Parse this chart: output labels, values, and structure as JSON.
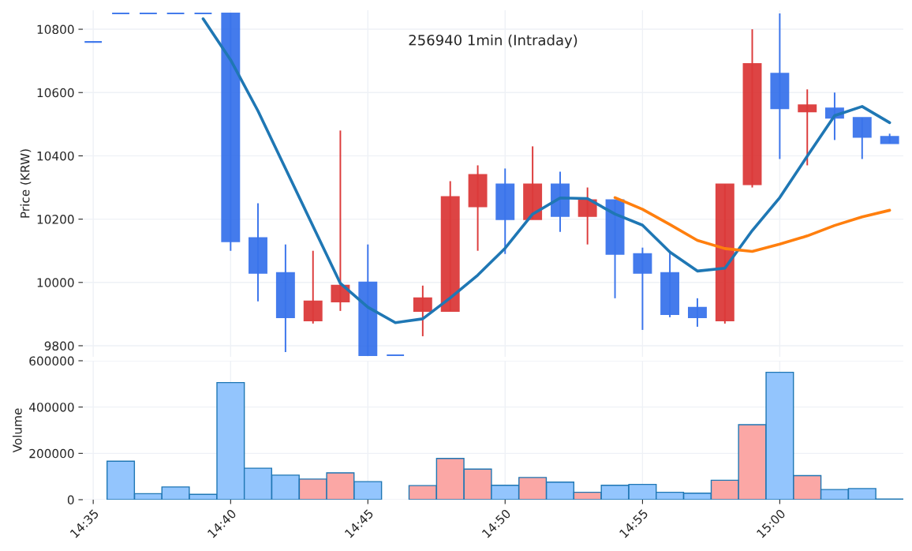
{
  "chart_data": [
    {
      "type": "candlestick",
      "title": "256940 1min (Intraday)",
      "ylabel": "Price (KRW)",
      "x": [
        14.5833,
        14.6,
        14.6167,
        14.6333,
        14.65,
        14.6667,
        14.6833,
        14.7,
        14.7167,
        14.7333,
        14.75,
        14.7667,
        14.7833,
        14.8,
        14.8167,
        14.8333,
        14.85,
        14.8667,
        14.8833,
        14.9,
        14.9167,
        14.9333,
        14.95,
        14.9667,
        14.9833,
        15,
        15.0167,
        15.0333,
        15.05,
        15.0667
      ],
      "ohlc": [
        [
          10760,
          10760,
          10760,
          10760
        ],
        [
          10850,
          10850,
          10850,
          10850
        ],
        [
          10850,
          10850,
          10850,
          10850
        ],
        [
          10850,
          10850,
          10850,
          10850
        ],
        [
          10850,
          10850,
          10850,
          10850
        ],
        [
          10850,
          10850,
          10100,
          10130
        ],
        [
          10140,
          10250,
          9940,
          10030
        ],
        [
          10030,
          10120,
          9780,
          9890
        ],
        [
          9880,
          10100,
          9870,
          9940
        ],
        [
          9940,
          10480,
          9910,
          9990
        ],
        [
          10000,
          10120,
          9770,
          9770
        ],
        [
          9770,
          9770,
          9770,
          9770
        ],
        [
          9910,
          9990,
          9830,
          9950
        ],
        [
          9910,
          10320,
          9910,
          10270
        ],
        [
          10240,
          10370,
          10100,
          10340
        ],
        [
          10310,
          10360,
          10090,
          10200
        ],
        [
          10200,
          10430,
          10200,
          10310
        ],
        [
          10310,
          10350,
          10160,
          10210
        ],
        [
          10210,
          10300,
          10120,
          10260
        ],
        [
          10260,
          10260,
          9950,
          10090
        ],
        [
          10090,
          10110,
          9850,
          10030
        ],
        [
          10030,
          10100,
          9890,
          9900
        ],
        [
          9920,
          9950,
          9860,
          9890
        ],
        [
          9880,
          10310,
          9870,
          10310
        ],
        [
          10310,
          10800,
          10300,
          10690
        ],
        [
          10660,
          10850,
          10390,
          10550
        ],
        [
          10540,
          10610,
          10370,
          10560
        ],
        [
          10550,
          10600,
          10450,
          10520
        ],
        [
          10520,
          10520,
          10390,
          10460
        ],
        [
          10460,
          10470,
          10440,
          10440
        ]
      ],
      "colors": [
        "#3a74eb",
        "#3a74eb",
        "#3a74eb",
        "#3a74eb",
        "#3a74eb",
        "#3a74eb",
        "#3a74eb",
        "#3a74eb",
        "#dc3a3a",
        "#dc3a3a",
        "#3a74eb",
        "#3a74eb",
        "#dc3a3a",
        "#dc3a3a",
        "#dc3a3a",
        "#3a74eb",
        "#dc3a3a",
        "#3a74eb",
        "#dc3a3a",
        "#3a74eb",
        "#3a74eb",
        "#3a74eb",
        "#3a74eb",
        "#dc3a3a",
        "#dc3a3a",
        "#3a74eb",
        "#dc3a3a",
        "#3a74eb",
        "#3a74eb",
        "#3a74eb"
      ],
      "series": [
        {
          "type": "line",
          "color": "#1f77b4",
          "x": [
            14.65,
            14.6667,
            14.6833,
            14.7,
            14.7167,
            14.7333,
            14.75,
            14.7667,
            14.7833,
            14.8,
            14.8167,
            14.8333,
            14.85,
            14.8667,
            14.8833,
            14.9,
            14.9167,
            14.9333,
            14.95,
            14.9667,
            14.9833,
            15,
            15.0167,
            15.0333,
            15.05,
            15.0667
          ],
          "values": [
            10833,
            10703,
            10542,
            10360,
            10178,
            9997,
            9922,
            9873,
            9885,
            9951,
            10023,
            10108,
            10216,
            10267,
            10265,
            10216,
            10181,
            10096,
            10036,
            10045,
            10164,
            10268,
            10399,
            10527,
            10556,
            10505
          ]
        },
        {
          "type": "line",
          "color": "#ff7f0e",
          "x": [
            14.9,
            14.9167,
            14.9333,
            14.95,
            14.9667,
            14.9833,
            15,
            15.0167,
            15.0333,
            15.05,
            15.0667
          ],
          "values": [
            10268,
            10231,
            10183,
            10133,
            10107,
            10098,
            10121,
            10147,
            10180,
            10207,
            10228
          ]
        }
      ],
      "xlim": [
        14.577,
        15.075
      ],
      "ylim": [
        9765,
        10860
      ],
      "xticks": [
        {
          "value": 14.5833,
          "label": null
        },
        {
          "value": 14.6667,
          "label": null
        },
        {
          "value": 14.75,
          "label": null
        },
        {
          "value": 14.8333,
          "label": null
        },
        {
          "value": 14.9167,
          "label": null
        },
        {
          "value": 15,
          "label": null
        }
      ],
      "yticks": [
        9800,
        10000,
        10200,
        10400,
        10600,
        10800
      ],
      "grid": true,
      "tick_labels": "y"
    },
    {
      "type": "bar",
      "ylabel": "Volume",
      "x": [
        14.6,
        14.6167,
        14.6333,
        14.65,
        14.6667,
        14.6833,
        14.7,
        14.7167,
        14.7333,
        14.75,
        14.7667,
        14.7833,
        14.8,
        14.8167,
        14.8333,
        14.85,
        14.8667,
        14.8833,
        14.9,
        14.9167,
        14.9333,
        14.95,
        14.9667,
        14.9833,
        15,
        15.0167,
        15.0333,
        15.05,
        15.0667
      ],
      "values": [
        166000,
        26000,
        55000,
        23000,
        506000,
        136000,
        106000,
        89000,
        116000,
        78000,
        null,
        61000,
        178000,
        132000,
        62000,
        96000,
        76000,
        32000,
        62000,
        66000,
        32000,
        28000,
        84000,
        324000,
        550000,
        104000,
        44000,
        48000,
        3000
      ],
      "colors": [
        "#93c5fd",
        "#93c5fd",
        "#93c5fd",
        "#93c5fd",
        "#93c5fd",
        "#93c5fd",
        "#93c5fd",
        "#fba7a5",
        "#fba7a5",
        "#93c5fd",
        "#93c5fd",
        "#fba7a5",
        "#fba7a5",
        "#fba7a5",
        "#93c5fd",
        "#fba7a5",
        "#93c5fd",
        "#fba7a5",
        "#93c5fd",
        "#93c5fd",
        "#93c5fd",
        "#93c5fd",
        "#fba7a5",
        "#fba7a5",
        "#93c5fd",
        "#fba7a5",
        "#93c5fd",
        "#93c5fd",
        "#93c5fd"
      ],
      "xlim": [
        14.577,
        15.075
      ],
      "ylim": [
        0,
        600000
      ],
      "xticks": [
        {
          "value": 14.5833,
          "label": "14:35"
        },
        {
          "value": 14.6667,
          "label": "14:40"
        },
        {
          "value": 14.75,
          "label": "14:45"
        },
        {
          "value": 14.8333,
          "label": "14:50"
        },
        {
          "value": 14.9167,
          "label": "14:55"
        },
        {
          "value": 15,
          "label": "15:00"
        }
      ],
      "yticks": [
        0,
        200000,
        400000,
        600000
      ],
      "grid": true
    }
  ]
}
